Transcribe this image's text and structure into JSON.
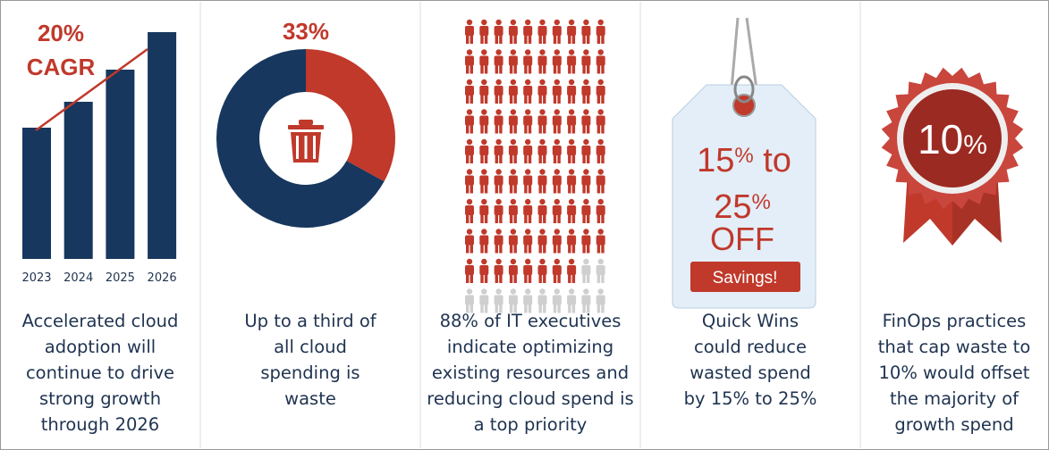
{
  "panels": [
    {
      "headline": [
        "20%",
        "CAGR"
      ],
      "chart": {
        "type": "bar",
        "categories": [
          "2023",
          "2024",
          "2025",
          "2026"
        ],
        "values": [
          147,
          176,
          212,
          254
        ]
      },
      "caption": [
        "Accelerated cloud",
        "adoption will",
        "continue to drive",
        "strong growth",
        "through 2026"
      ]
    },
    {
      "headline": {
        "value": 33,
        "label": "33%"
      },
      "caption": [
        "Up to a third of",
        "all cloud",
        "spending is",
        "waste"
      ]
    },
    {
      "people": {
        "filled": 88,
        "total": 100
      },
      "caption": [
        "88% of IT executives",
        "indicate optimizing",
        "existing resources and",
        "reducing cloud spend is",
        "a top priority"
      ]
    },
    {
      "tag": {
        "line1": "15",
        "pct1": "%",
        "to": " to",
        "line2": "25",
        "pct2": "%",
        "off": "OFF",
        "button": "Savings!"
      },
      "caption": [
        "Quick Wins",
        "could reduce",
        "wasted spend",
        "by 15% to 25%"
      ]
    },
    {
      "badge": {
        "number": "10",
        "pct": "%"
      },
      "caption": [
        "FinOps practices",
        "that cap waste to",
        "10% would offset",
        "the majority of",
        "growth spend"
      ]
    }
  ]
}
